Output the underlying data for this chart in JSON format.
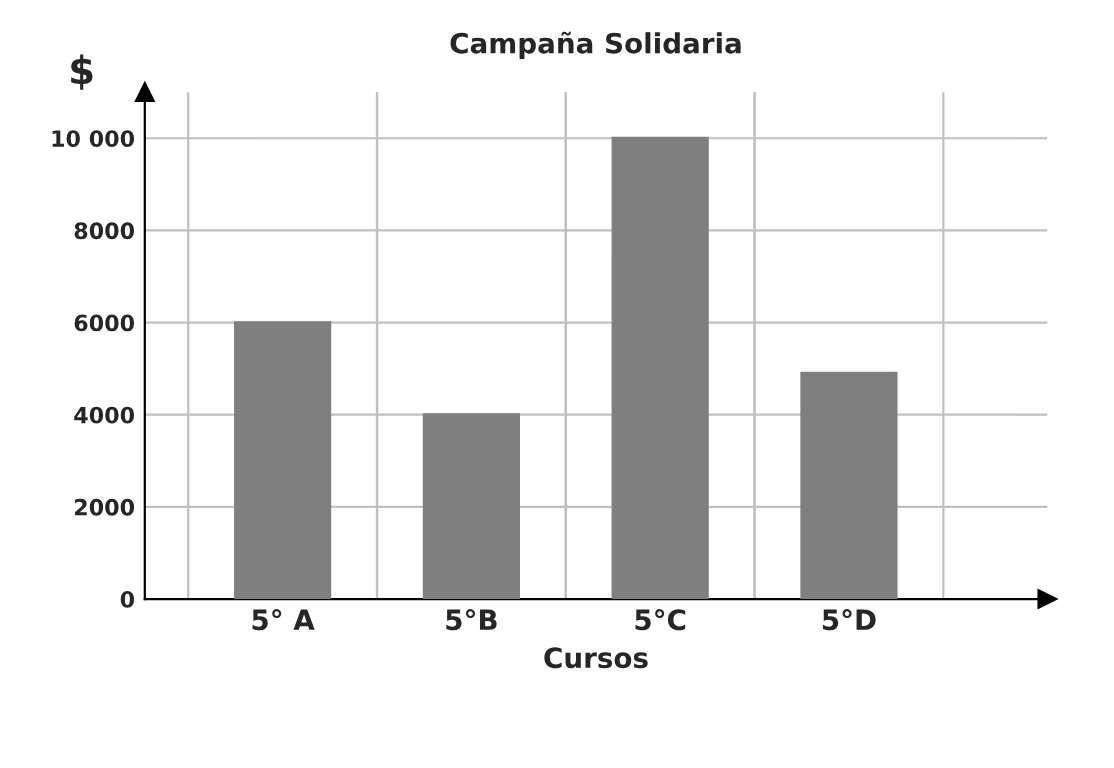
{
  "chart_data": {
    "type": "bar",
    "title": "Campaña Solidaria",
    "xlabel": "Cursos",
    "ylabel": "$",
    "categories": [
      "5° A",
      "5°B",
      "5°C",
      "5°D"
    ],
    "values": [
      6000,
      4000,
      10000,
      4900
    ],
    "color": "#7f7f7f",
    "ylim": [
      0,
      11000
    ],
    "yticks": [
      0,
      2000,
      4000,
      6000,
      8000,
      {
        "value": 10000,
        "label": "10 000"
      }
    ],
    "grid": true,
    "legend": false
  }
}
